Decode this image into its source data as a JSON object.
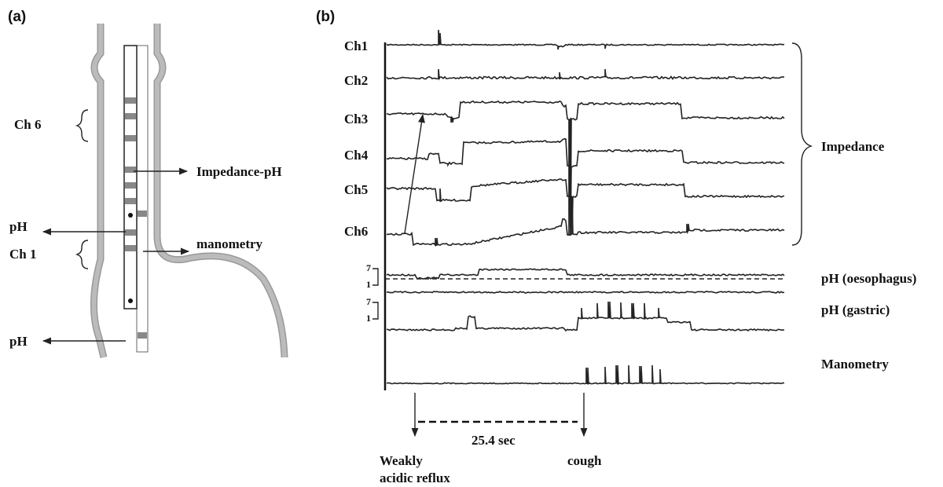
{
  "panel_a": {
    "label": "(a)",
    "ch6": "Ch 6",
    "impedance_ph": "Impedance-pH",
    "ph_upper": "pH",
    "ch1": "Ch 1",
    "manometry": "manometry",
    "ph_lower": "pH"
  },
  "panel_b": {
    "label": "(b)",
    "channels": [
      "Ch1",
      "Ch2",
      "Ch3",
      "Ch4",
      "Ch5",
      "Ch6"
    ],
    "impedance": "Impedance",
    "ph_oesophagus": {
      "scale": [
        7,
        1
      ],
      "label": "pH (oesophagus)"
    },
    "ph_gastric": {
      "scale": [
        7,
        1
      ],
      "label": "pH (gastric)"
    },
    "manometry": "Manometry",
    "interval": "25.4 sec",
    "event_reflux": [
      "Weakly",
      "acidic reflux"
    ],
    "event_cough": "cough"
  }
}
